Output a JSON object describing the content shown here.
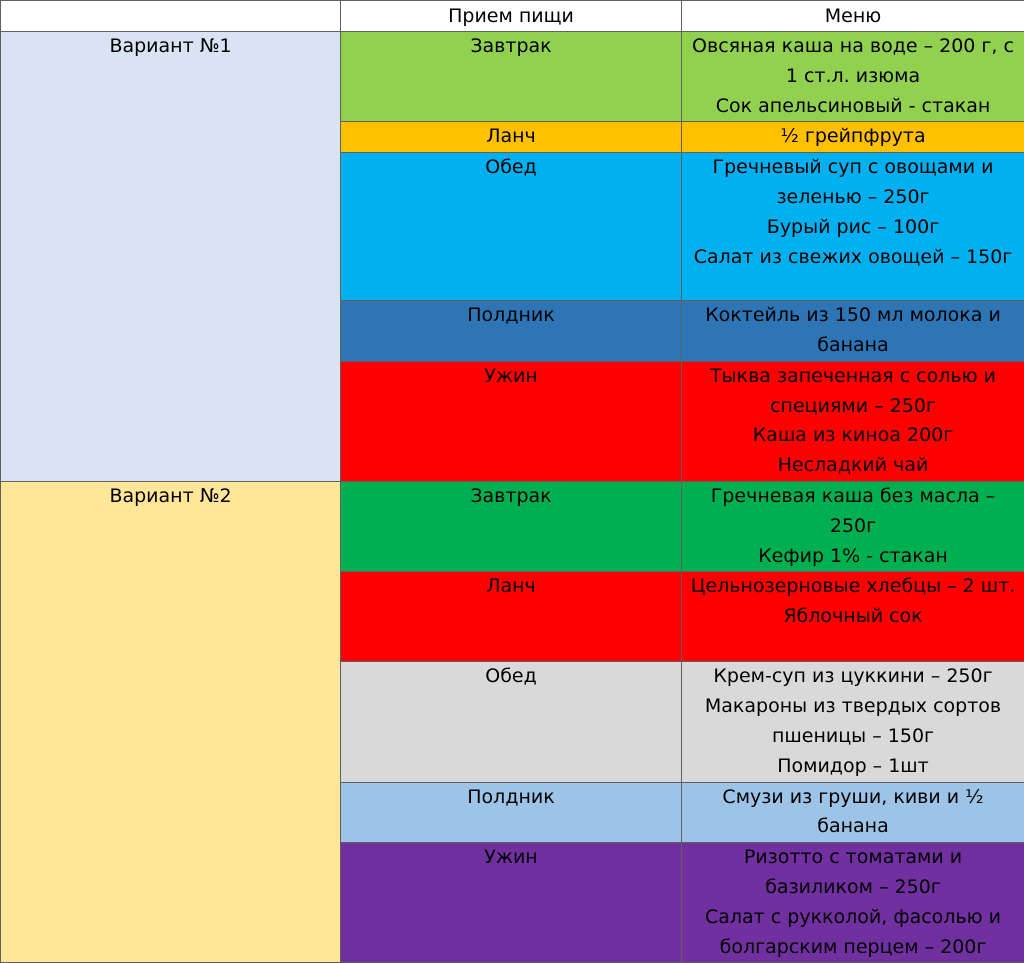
{
  "header": {
    "col1": "",
    "col2": "Прием пищи",
    "col3": "Меню"
  },
  "colors": {
    "variant1_bg": "#dae3f3",
    "variant2_bg": "#ffe699"
  },
  "variants": [
    {
      "label": "Вариант №1",
      "meals": [
        {
          "name": "Завтрак",
          "bg": "#92d050",
          "color": "#000000",
          "lines": [
            "Овсяная каша на воде – 200 г, с 1 ст.л. изюма",
            "Сок апельсиновый - стакан"
          ]
        },
        {
          "name": "Ланч",
          "bg": "#ffc000",
          "color": "#000000",
          "lines": [
            "½ грейпфрута"
          ]
        },
        {
          "name": "Обед",
          "bg": "#00b0f0",
          "color": "#000000",
          "lines": [
            "Гречневый суп с овощами и зеленью – 250г",
            "Бурый рис – 100г",
            "Салат из свежих овощей – 150г"
          ]
        },
        {
          "name": "Полдник",
          "bg": "#2e75b6",
          "color": "#000000",
          "lines": [
            "Коктейль из 150 мл молока и банана"
          ]
        },
        {
          "name": "Ужин",
          "bg": "#ff0000",
          "color": "#000000",
          "lines": [
            "Тыква запеченная с солью и специями – 250г",
            "Каша из киноа 200г",
            "Несладкий чай"
          ]
        }
      ]
    },
    {
      "label": "Вариант №2",
      "meals": [
        {
          "name": "Завтрак",
          "bg": "#00b050",
          "color": "#000000",
          "lines": [
            "Гречневая каша без масла – 250г",
            "Кефир 1% - стакан"
          ]
        },
        {
          "name": "Ланч",
          "bg": "#ff0000",
          "color": "#000000",
          "lines": [
            "Цельнозерновые хлебцы – 2 шт.",
            "Яблочный сок"
          ]
        },
        {
          "name": "Обед",
          "bg": "#d9d9d9",
          "color": "#000000",
          "lines": [
            "Крем-суп из цуккини – 250г",
            "Макароны из твердых сортов пшеницы – 150г",
            "Помидор – 1шт"
          ]
        },
        {
          "name": "Полдник",
          "bg": "#9dc3e6",
          "color": "#000000",
          "lines": [
            "Смузи из груши, киви и ½ банана"
          ]
        },
        {
          "name": "Ужин",
          "bg": "#7030a0",
          "color": "#000000",
          "lines": [
            "Ризотто с томатами и базиликом – 250г",
            "Салат с рукколой, фасолью и болгарским перцем – 200г"
          ]
        }
      ]
    }
  ]
}
